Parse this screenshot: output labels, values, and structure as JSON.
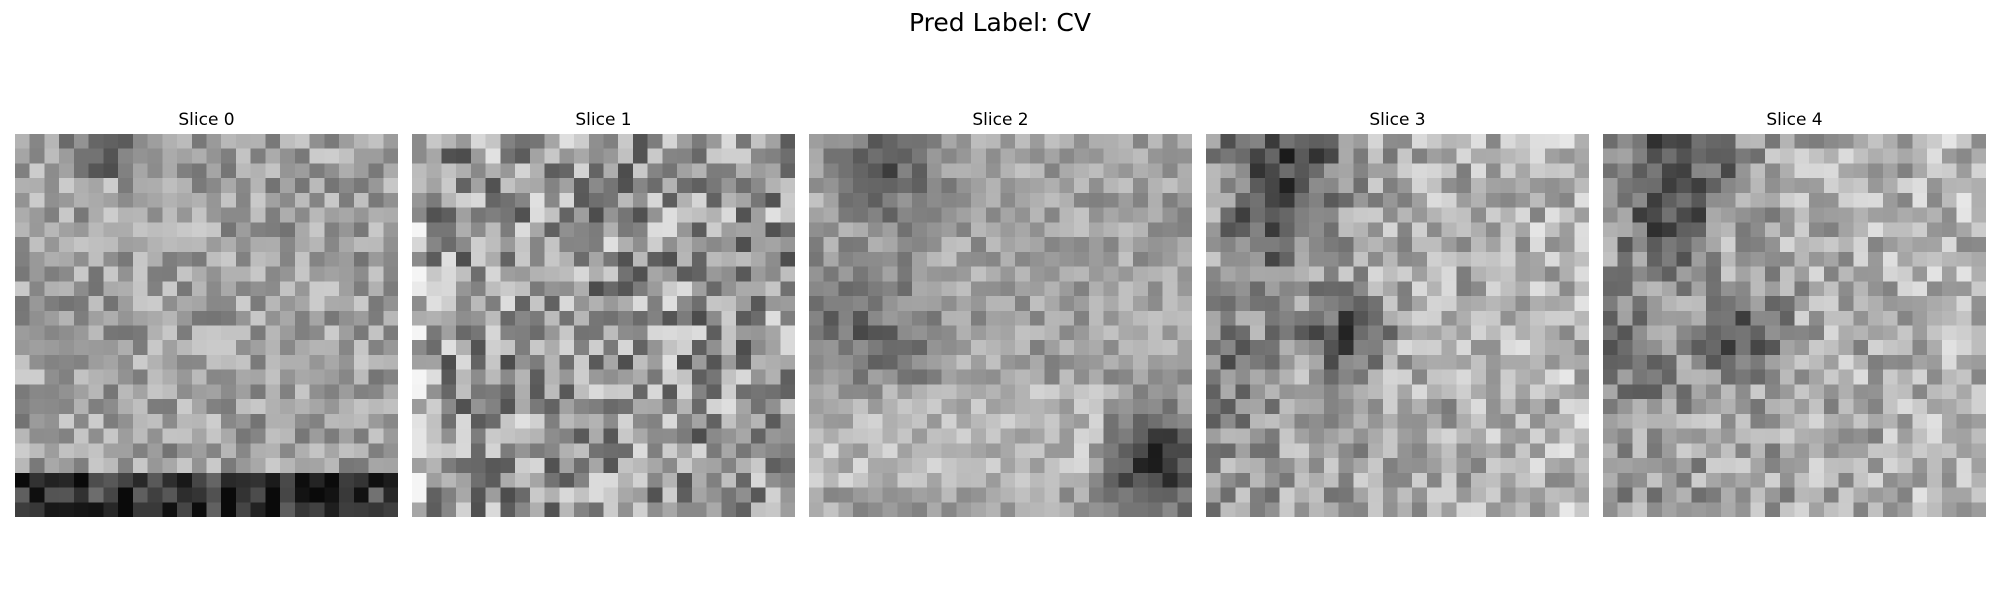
{
  "figure": {
    "suptitle": "Pred Label: CV"
  },
  "panels": [
    {
      "title": "Slice 0",
      "variant": "uniform-with-dark-bottom-rows"
    },
    {
      "title": "Slice 1",
      "variant": "high-contrast-noise"
    },
    {
      "title": "Slice 2",
      "variant": "dark-upper-left-and-bottom-right-blob"
    },
    {
      "title": "Slice 3",
      "variant": "dark-left-blobs-bright-right"
    },
    {
      "title": "Slice 4",
      "variant": "dark-left-blobs-bright-right"
    }
  ],
  "colormap": "gray"
}
